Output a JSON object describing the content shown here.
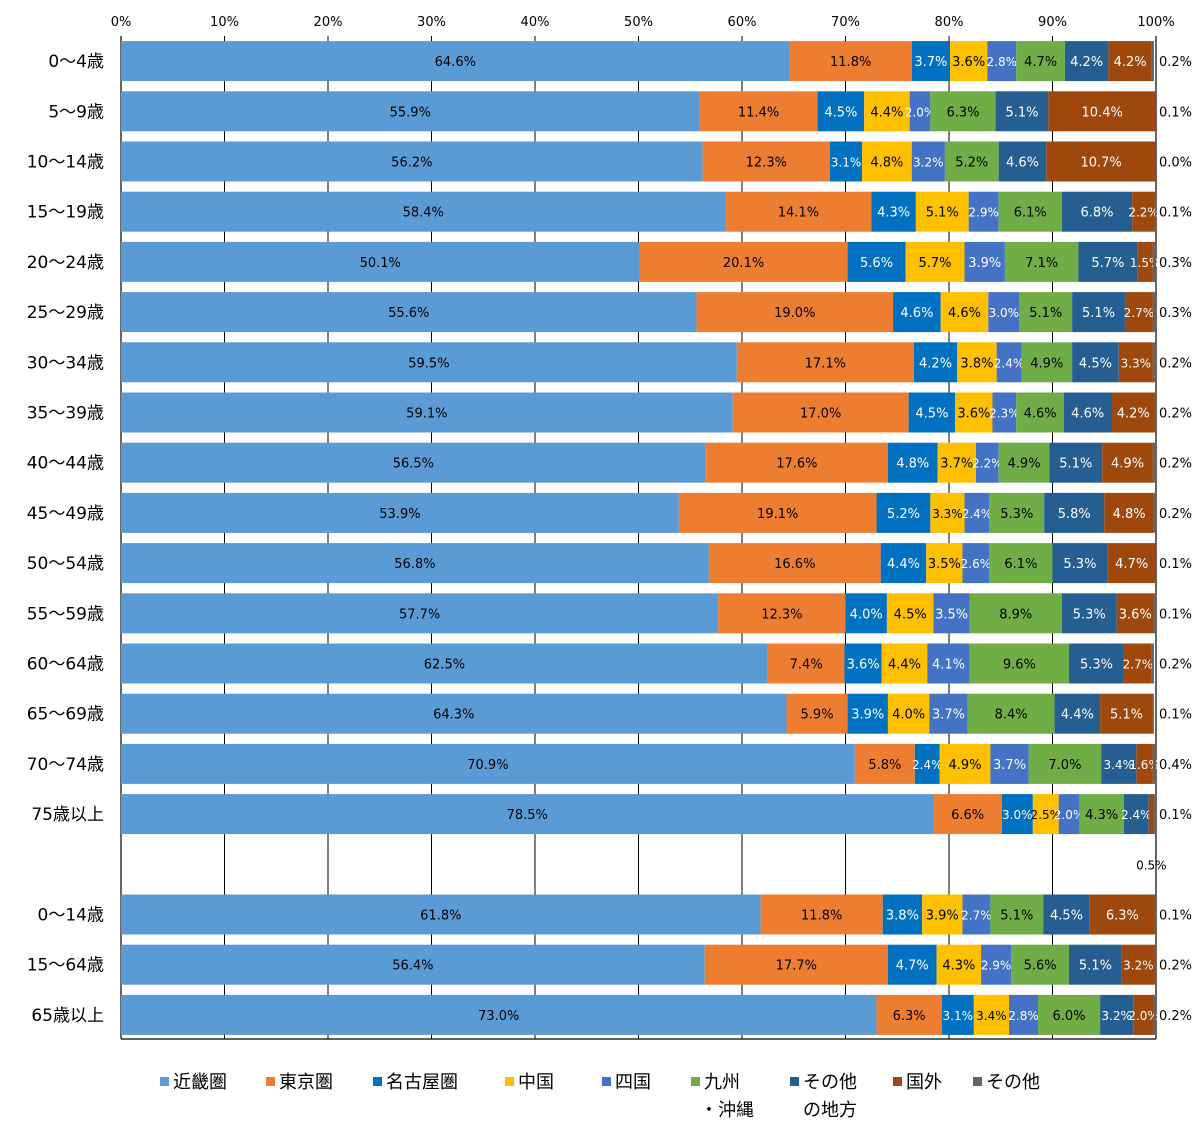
{
  "chart_data": {
    "type": "bar",
    "orientation": "horizontal",
    "stacked": "percent",
    "xlim": [
      0,
      100
    ],
    "x_ticks": [
      "0%",
      "10%",
      "20%",
      "30%",
      "40%",
      "50%",
      "60%",
      "70%",
      "80%",
      "90%",
      "100%"
    ],
    "grid": true,
    "legend_position": "bottom",
    "categories": [
      "0～4歳",
      "5～9歳",
      "10～14歳",
      "15～19歳",
      "20～24歳",
      "25～29歳",
      "30～34歳",
      "35～39歳",
      "40～44歳",
      "45～49歳",
      "50～54歳",
      "55～59歳",
      "60～64歳",
      "65～69歳",
      "70～74歳",
      "75歳以上",
      "",
      "0～14歳",
      "15～64歳",
      "65歳以上"
    ],
    "series": [
      {
        "name": "近畿圏",
        "color": "#5B9BD5",
        "label_color": "#000000",
        "values": [
          64.6,
          55.9,
          56.2,
          58.4,
          50.1,
          55.6,
          59.5,
          59.1,
          56.5,
          53.9,
          56.8,
          57.7,
          62.5,
          64.3,
          70.9,
          78.5,
          null,
          61.8,
          56.4,
          73.0
        ]
      },
      {
        "name": "東京圏",
        "color": "#ED7D31",
        "label_color": "#000000",
        "values": [
          11.8,
          11.4,
          12.3,
          14.1,
          20.1,
          19.0,
          17.1,
          17.0,
          17.6,
          19.1,
          16.6,
          12.3,
          7.4,
          5.9,
          5.8,
          6.6,
          null,
          11.8,
          17.7,
          6.3
        ]
      },
      {
        "name": "名古屋圏",
        "color": "#0070C0",
        "label_color": "#FFFFFF",
        "values": [
          3.7,
          4.5,
          3.1,
          4.3,
          5.6,
          4.6,
          4.2,
          4.5,
          4.8,
          5.2,
          4.4,
          4.0,
          3.6,
          3.9,
          2.4,
          3.0,
          null,
          3.8,
          4.7,
          3.1
        ]
      },
      {
        "name": "中国",
        "color": "#FFC000",
        "label_color": "#000000",
        "values": [
          3.6,
          4.4,
          4.8,
          5.1,
          5.7,
          4.6,
          3.8,
          3.6,
          3.7,
          3.3,
          3.5,
          4.5,
          4.4,
          4.0,
          4.9,
          2.5,
          null,
          3.9,
          4.3,
          3.4
        ]
      },
      {
        "name": "四国",
        "color": "#4472C4",
        "label_color": "#FFFFFF",
        "values": [
          2.8,
          2.0,
          3.2,
          2.9,
          3.9,
          3.0,
          2.4,
          2.3,
          2.2,
          2.4,
          2.6,
          3.5,
          4.1,
          3.7,
          3.7,
          2.0,
          null,
          2.7,
          2.9,
          2.8
        ]
      },
      {
        "name": "九州・沖縄",
        "color": "#70AD47",
        "label_color": "#000000",
        "values": [
          4.7,
          6.3,
          5.2,
          6.1,
          7.1,
          5.1,
          4.9,
          4.6,
          4.9,
          5.3,
          6.1,
          8.9,
          9.6,
          8.4,
          7.0,
          4.3,
          null,
          5.1,
          5.6,
          6.0
        ]
      },
      {
        "name": "その他の地方",
        "color": "#255E91",
        "label_color": "#FFFFFF",
        "values": [
          4.2,
          5.1,
          4.6,
          6.8,
          5.7,
          5.1,
          4.5,
          4.6,
          5.1,
          5.8,
          5.3,
          5.3,
          5.3,
          4.4,
          3.4,
          2.4,
          null,
          4.5,
          5.1,
          3.2
        ]
      },
      {
        "name": "国外",
        "color": "#9E480E",
        "label_color": "#FFFFFF",
        "values": [
          4.2,
          10.4,
          10.7,
          2.2,
          1.5,
          2.7,
          3.3,
          4.2,
          4.9,
          4.8,
          4.7,
          3.6,
          2.7,
          5.1,
          1.6,
          0.5,
          null,
          6.3,
          3.2,
          2.0
        ]
      },
      {
        "name": "その他",
        "color": "#636363",
        "label_color": "#000000",
        "values": [
          0.2,
          0.1,
          0.0,
          0.1,
          0.3,
          0.3,
          0.2,
          0.2,
          0.2,
          0.2,
          0.1,
          0.1,
          0.2,
          0.1,
          0.4,
          0.1,
          null,
          0.1,
          0.2,
          0.2
        ]
      }
    ],
    "legend": [
      {
        "line1": "近畿圏",
        "line2": ""
      },
      {
        "line1": "東京圏",
        "line2": ""
      },
      {
        "line1": "名古屋圏",
        "line2": ""
      },
      {
        "line1": "中国",
        "line2": ""
      },
      {
        "line1": "四国",
        "line2": ""
      },
      {
        "line1": "九州",
        "line2": "・沖縄"
      },
      {
        "line1": "その他",
        "line2": "の地方"
      },
      {
        "line1": "国外",
        "line2": ""
      },
      {
        "line1": "その他",
        "line2": ""
      }
    ]
  }
}
